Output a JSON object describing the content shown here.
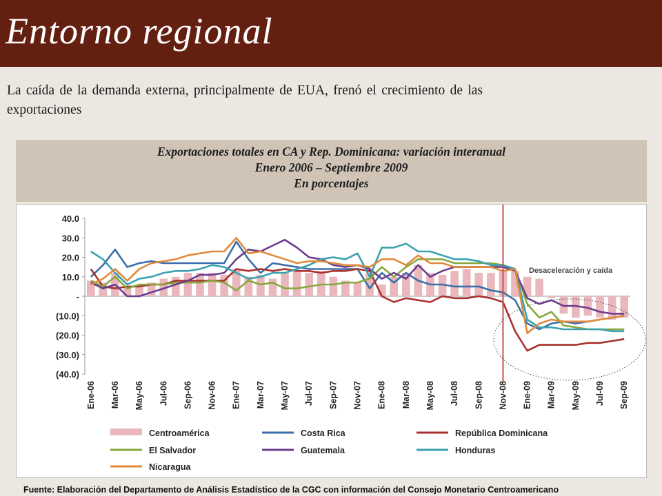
{
  "header": {
    "title": "Entorno regional"
  },
  "intro": "La caída de la demanda externa, principalmente de EUA, frenó el crecimiento de las exportaciones",
  "chart_title": {
    "line1": "Exportaciones totales en CA y Rep. Dominicana: variación interanual",
    "line2": "Enero 2006 – Septiembre 2009",
    "line3": "En porcentajes"
  },
  "annotation": "Desaceleración y caída",
  "source": "Fuente:  Elaboración del Departamento de Análisis Estadístico de la CGC con información del Consejo Monetario Centroamericano",
  "colors": {
    "header": "#631f10",
    "Centroamérica": "#e9b7bc",
    "Costa Rica": "#3b6fa9",
    "República Dominicana": "#a8312d",
    "El Salvador": "#86a83f",
    "Guatemala": "#6d3c8e",
    "Honduras": "#3aa1b0",
    "Nicaragua": "#e18a3a"
  },
  "chart_data": {
    "type": "bar+line",
    "x_ticks": [
      "Ene-06",
      "Mar-06",
      "May-06",
      "Jul-06",
      "Sep-06",
      "Nov-06",
      "Ene-07",
      "Mar-07",
      "May-07",
      "Jul-07",
      "Sep-07",
      "Nov-07",
      "Ene-08",
      "Mar-08",
      "May-08",
      "Jul-08",
      "Sep-08",
      "Nov-08",
      "Ene-09",
      "Mar-09",
      "May-09",
      "Jul-09",
      "Sep-09"
    ],
    "y_ticks": [
      "40.0",
      "30.0",
      "20.0",
      "10.0",
      "-",
      "(10.0)",
      "(20.0)",
      "(30.0)",
      "(40.0)"
    ],
    "ylim": [
      -40,
      40
    ],
    "grid": false,
    "legend": "bottom",
    "bar_series": {
      "name": "Centroamérica",
      "values": [
        8,
        7,
        12,
        5,
        6,
        7,
        9,
        10,
        12,
        12,
        12,
        11,
        14,
        10,
        11,
        9,
        12,
        13,
        12,
        13,
        10,
        8,
        7,
        12,
        6,
        10,
        12,
        16,
        12,
        11,
        13,
        14,
        12,
        12,
        13,
        13,
        10,
        9,
        -1,
        -9,
        -11,
        -10,
        -11,
        -12,
        -11
      ]
    },
    "line_series": [
      {
        "name": "Costa Rica",
        "values": [
          10,
          16,
          24,
          15,
          17,
          18,
          17,
          17,
          17,
          17,
          17,
          17,
          28,
          19,
          12,
          17,
          16,
          15,
          14,
          14,
          14,
          14,
          14,
          4,
          12,
          7,
          12,
          8,
          6,
          6,
          5,
          5,
          5,
          3,
          2,
          -2,
          -14,
          -17,
          -14,
          -13,
          -14,
          -13,
          -12,
          -11,
          -10
        ]
      },
      {
        "name": "República Dominicana",
        "values": [
          14,
          5,
          4,
          5,
          5,
          6,
          6,
          8,
          8,
          8,
          8,
          8,
          14,
          13,
          14,
          13,
          14,
          13,
          13,
          12,
          13,
          13,
          14,
          13,
          0,
          -3,
          -1,
          -2,
          -3,
          0,
          -1,
          -1,
          0,
          -1,
          -3,
          -18,
          -28,
          -25,
          -25,
          -25,
          -25,
          -24,
          -24,
          -23,
          -22
        ]
      },
      {
        "name": "El Salvador",
        "values": [
          8,
          5,
          10,
          4,
          6,
          6,
          6,
          7,
          7,
          7,
          8,
          7,
          3,
          8,
          6,
          7,
          4,
          4,
          5,
          6,
          6,
          7,
          7,
          9,
          15,
          10,
          15,
          19,
          19,
          19,
          17,
          17,
          17,
          17,
          16,
          14,
          -4,
          -11,
          -8,
          -15,
          -16,
          -17,
          -17,
          -17,
          -17
        ]
      },
      {
        "name": "Guatemala",
        "values": [
          7,
          4,
          6,
          0,
          0,
          2,
          4,
          6,
          8,
          11,
          11,
          12,
          19,
          24,
          23,
          26,
          29,
          25,
          20,
          19,
          16,
          15,
          16,
          14,
          9,
          12,
          9,
          16,
          10,
          13,
          15,
          15,
          15,
          15,
          15,
          13,
          -1,
          -4,
          -2,
          -5,
          -5,
          -6,
          -8,
          -9,
          -9
        ]
      },
      {
        "name": "Honduras",
        "values": [
          23,
          19,
          12,
          6,
          9,
          10,
          12,
          13,
          13,
          14,
          16,
          15,
          12,
          9,
          10,
          12,
          12,
          14,
          16,
          19,
          20,
          19,
          22,
          10,
          25,
          25,
          27,
          23,
          23,
          21,
          19,
          19,
          18,
          16,
          16,
          14,
          -12,
          -16,
          -16,
          -17,
          -17,
          -17,
          -17,
          -18,
          -18
        ]
      },
      {
        "name": "Nicaragua",
        "values": [
          6,
          9,
          14,
          8,
          14,
          17,
          18,
          19,
          21,
          22,
          23,
          23,
          30,
          22,
          23,
          21,
          19,
          17,
          18,
          18,
          17,
          16,
          16,
          15,
          19,
          19,
          16,
          21,
          17,
          17,
          15,
          15,
          15,
          15,
          13,
          14,
          -19,
          -14,
          -12,
          -13,
          -13,
          -13,
          -12,
          -11,
          -10
        ]
      }
    ],
    "months": 45,
    "vertical_marker_index": 34.5
  }
}
